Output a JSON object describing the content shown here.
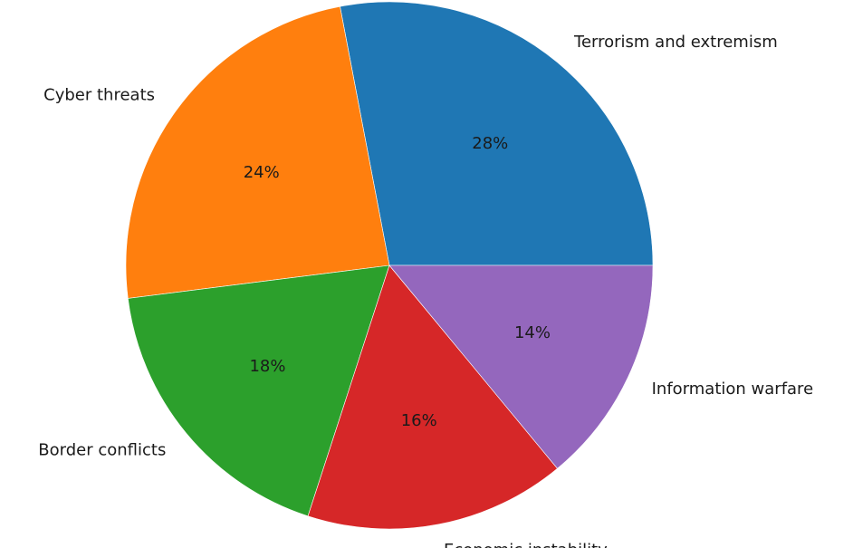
{
  "chart_data": {
    "type": "pie",
    "title": "",
    "categories": [
      "Terrorism and extremism",
      "Cyber threats",
      "Border conflicts",
      "Economic instability",
      "Information warfare"
    ],
    "values": [
      28,
      24,
      18,
      16,
      14
    ],
    "percent_labels": [
      "28%",
      "24%",
      "18%",
      "16%",
      "14%"
    ],
    "colors": [
      "#1f77b4",
      "#ff7f0e",
      "#2ca02c",
      "#d62728",
      "#9467bd"
    ],
    "start_angle_deg": 0,
    "direction": "counterclockwise",
    "legend": "none"
  }
}
